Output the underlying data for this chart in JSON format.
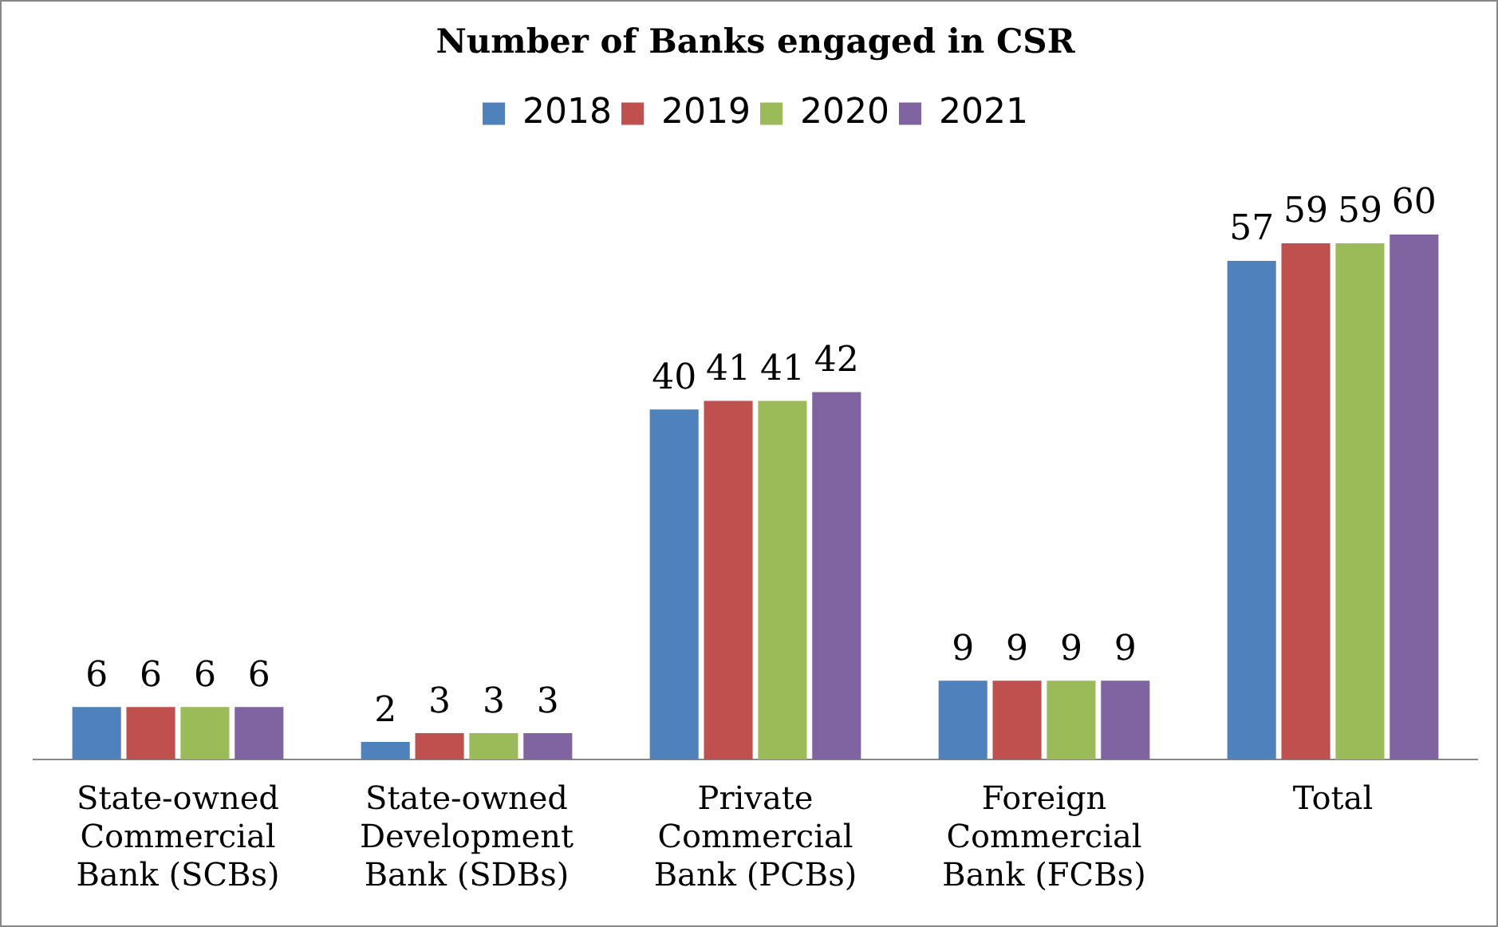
{
  "chart_data": {
    "type": "bar",
    "title": "Number of Banks engaged in CSR",
    "categories": [
      "State-owned Commercial Bank (SCBs)",
      "State-owned Development Bank (SDBs)",
      "Private Commercial Bank (PCBs)",
      "Foreign Commercial Bank (FCBs)",
      "Total"
    ],
    "series": [
      {
        "name": "2018",
        "color": "#4f81bd",
        "values": [
          6,
          2,
          40,
          9,
          57
        ]
      },
      {
        "name": "2019",
        "color": "#c0504d",
        "values": [
          6,
          3,
          41,
          9,
          59
        ]
      },
      {
        "name": "2020",
        "color": "#9bbb59",
        "values": [
          6,
          3,
          41,
          9,
          59
        ]
      },
      {
        "name": "2021",
        "color": "#8064a2",
        "values": [
          6,
          3,
          42,
          9,
          60
        ]
      }
    ],
    "data_labels": true,
    "legend": "top",
    "grid": false
  }
}
